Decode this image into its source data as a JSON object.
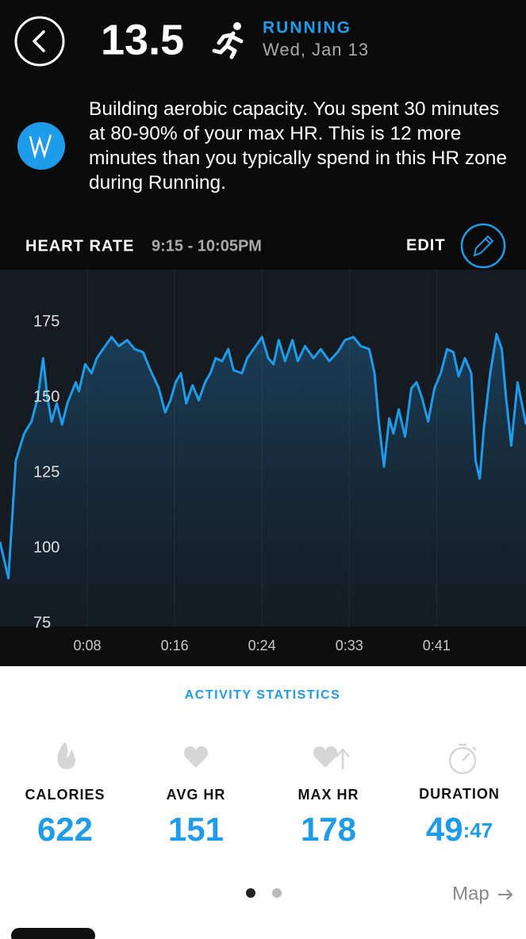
{
  "header": {
    "score": "13.5",
    "activity": "RUNNING",
    "date": "Wed, Jan 13"
  },
  "insight": "Building aerobic capacity. You spent 30 minutes at 80-90% of your max HR. This is 12 more minutes than you typically spend in this HR zone during Running.",
  "chart_header": {
    "label": "HEART RATE",
    "range": "9:15 - 10:05PM",
    "edit": "EDIT"
  },
  "chart_data": {
    "type": "line",
    "color": "#1e9be9",
    "x": [
      0,
      0.8,
      1.5,
      2.3,
      3.0,
      3.6,
      4.1,
      4.5,
      4.9,
      5.4,
      5.9,
      6.4,
      7.2,
      7.5,
      8.1,
      8.7,
      9.2,
      9.8,
      10.6,
      11.3,
      12.1,
      12.8,
      13.6,
      14.3,
      15.1,
      15.7,
      16.2,
      16.7,
      17.2,
      17.7,
      18.3,
      18.9,
      19.5,
      20.0,
      20.5,
      21.1,
      21.7,
      22.2,
      23.0,
      23.5,
      24.1,
      24.9,
      25.5,
      26.0,
      26.5,
      27.1,
      27.8,
      28.3,
      29.0,
      29.8,
      30.5,
      31.3,
      32.1,
      32.8,
      33.6,
      34.3,
      35.1,
      35.6,
      36.0,
      36.5,
      37.0,
      37.4,
      37.9,
      38.5,
      39.1,
      39.6,
      40.1,
      40.7,
      41.3,
      41.9,
      42.5,
      43.1,
      43.6,
      44.2,
      44.8,
      45.2,
      45.6,
      46.0,
      46.6,
      47.2,
      47.7,
      48.1,
      48.6,
      49.2,
      50.0
    ],
    "values": [
      102,
      90,
      129,
      138,
      142,
      150,
      163,
      150,
      142,
      148,
      141,
      148,
      155,
      152,
      161,
      158,
      163,
      166,
      170,
      167,
      169,
      166,
      165,
      159,
      153,
      145,
      149,
      155,
      158,
      148,
      154,
      149,
      155,
      158,
      163,
      162,
      166,
      159,
      158,
      163,
      166,
      170,
      163,
      161,
      169,
      162,
      169,
      162,
      167,
      163,
      166,
      162,
      165,
      169,
      170,
      167,
      166,
      158,
      142,
      127,
      143,
      138,
      146,
      137,
      153,
      155,
      150,
      142,
      153,
      158,
      166,
      165,
      157,
      163,
      158,
      129,
      123,
      140,
      158,
      171,
      166,
      150,
      134,
      155,
      141
    ],
    "xlim": [
      0,
      50
    ],
    "ylim": [
      75,
      190
    ],
    "xticks": [
      {
        "value": 8.3,
        "label": "0:08"
      },
      {
        "value": 16.6,
        "label": "0:16"
      },
      {
        "value": 24.9,
        "label": "0:24"
      },
      {
        "value": 33.2,
        "label": "0:33"
      },
      {
        "value": 41.5,
        "label": "0:41"
      }
    ],
    "yticks": [
      75,
      100,
      125,
      150,
      175
    ],
    "grid": true
  },
  "stats": {
    "title": "ACTIVITY STATISTICS",
    "items": [
      {
        "label": "CALORIES",
        "value": 622
      },
      {
        "label": "AVG HR",
        "value": 151
      },
      {
        "label": "MAX HR",
        "value": 178
      }
    ],
    "duration": {
      "label": "DURATION",
      "minutes": "49",
      "seconds": ":47"
    }
  },
  "footer": {
    "map": "Map"
  }
}
